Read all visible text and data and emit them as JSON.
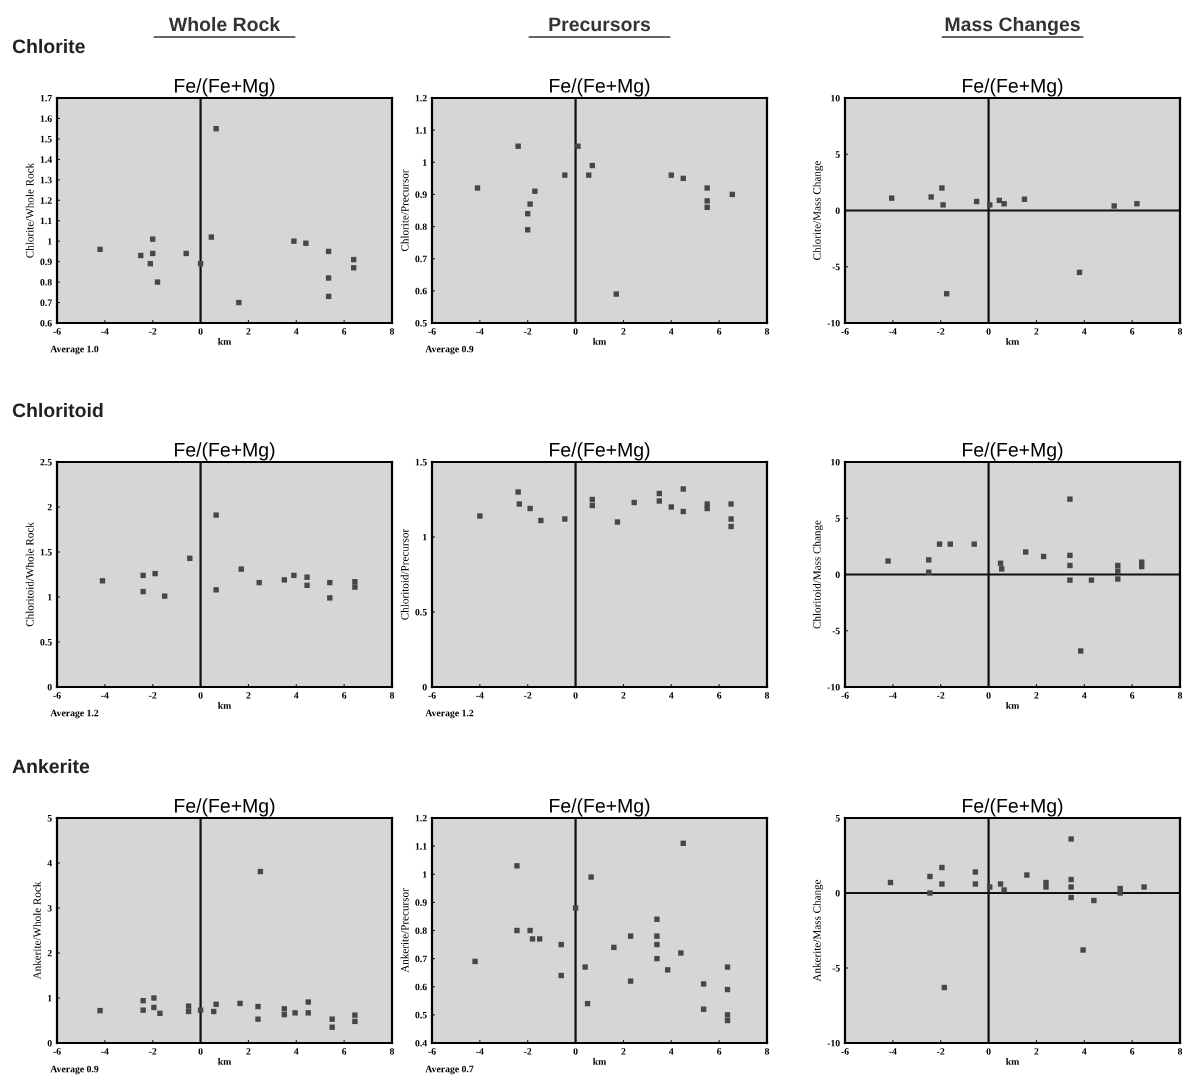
{
  "chart_data": [
    {
      "type": "scatter",
      "subtitle": "Whole Rock",
      "title": "Fe/(Fe+Mg)",
      "xlabel": "km",
      "ylabel": "Chlorite/Whole Rock",
      "annotations": [
        "Chlorite",
        "Average 1.0"
      ],
      "marker": "square",
      "color": "#474747",
      "xlim": [
        -6,
        8
      ],
      "xticks": [
        -6,
        -4,
        -2,
        0,
        2,
        4,
        6,
        8
      ],
      "ylim": [
        0.6,
        1.7
      ],
      "yticks": [
        0.6,
        0.7,
        0.8,
        0.9,
        1,
        1.1,
        1.2,
        1.3,
        1.4,
        1.5,
        1.6,
        1.7
      ],
      "ref_lines": [
        {
          "axis": "x",
          "value": 0
        }
      ],
      "x": [
        -4.2,
        -2.5,
        -2.0,
        -2.0,
        -2.1,
        -1.8,
        -0.6,
        0.0,
        0.45,
        0.65,
        1.6,
        3.9,
        4.4,
        5.35,
        5.35,
        5.35,
        6.4,
        6.4
      ],
      "values": [
        0.96,
        0.93,
        1.01,
        0.94,
        0.89,
        0.8,
        0.94,
        0.89,
        1.02,
        1.55,
        0.7,
        1.0,
        0.99,
        0.95,
        0.82,
        0.73,
        0.91,
        0.87
      ]
    },
    {
      "type": "scatter",
      "subtitle": "Precursors",
      "title": "Fe/(Fe+Mg)",
      "xlabel": "km",
      "ylabel": "Chlorite/Precursor",
      "annotations": [
        "Average 0.9"
      ],
      "marker": "square",
      "color": "#474747",
      "xlim": [
        -6,
        8
      ],
      "xticks": [
        -6,
        -4,
        -2,
        0,
        2,
        4,
        6,
        8
      ],
      "ylim": [
        0.5,
        1.2
      ],
      "yticks": [
        0.5,
        0.6,
        0.7,
        0.8,
        0.9,
        1,
        1.1,
        1.2
      ],
      "ref_lines": [
        {
          "axis": "x",
          "value": 0
        }
      ],
      "x": [
        -4.1,
        -2.4,
        -1.7,
        -1.9,
        -2.0,
        -2.0,
        -0.45,
        0.1,
        0.55,
        0.7,
        1.7,
        4.0,
        4.5,
        5.5,
        5.5,
        5.5,
        6.55
      ],
      "values": [
        0.92,
        1.05,
        0.91,
        0.87,
        0.84,
        0.79,
        0.96,
        1.05,
        0.96,
        0.99,
        0.59,
        0.96,
        0.95,
        0.92,
        0.88,
        0.86,
        0.9
      ]
    },
    {
      "type": "scatter",
      "subtitle": "Mass Changes",
      "title": "Fe/(Fe+Mg)",
      "xlabel": "km",
      "ylabel": "Chlorite/Mass Change",
      "marker": "square",
      "color": "#474747",
      "xlim": [
        -6,
        8
      ],
      "xticks": [
        -6,
        -4,
        -2,
        0,
        2,
        4,
        6,
        8
      ],
      "ylim": [
        -10,
        10
      ],
      "yticks": [
        -10,
        -5,
        0,
        5,
        10
      ],
      "ref_lines": [
        {
          "axis": "x",
          "value": 0
        },
        {
          "axis": "y",
          "value": 0
        }
      ],
      "x": [
        -4.05,
        -2.4,
        -1.95,
        -1.9,
        -0.5,
        0.05,
        0.45,
        0.65,
        1.5,
        5.25,
        6.2,
        3.8,
        -1.75
      ],
      "values": [
        1.1,
        1.2,
        2.0,
        0.5,
        0.8,
        0.5,
        0.9,
        0.6,
        1.0,
        0.4,
        0.6,
        -5.5,
        -7.4
      ]
    },
    {
      "type": "scatter",
      "title": "Fe/(Fe+Mg)",
      "xlabel": "km",
      "ylabel": "Chloritoid/Whole Rock",
      "annotations": [
        "Chloritoid",
        "Average 1.2"
      ],
      "marker": "square",
      "color": "#474747",
      "xlim": [
        -6,
        8
      ],
      "xticks": [
        -6,
        -4,
        -2,
        0,
        2,
        4,
        6,
        8
      ],
      "ylim": [
        0,
        2.5
      ],
      "yticks": [
        0,
        0.5,
        1,
        1.5,
        2,
        2.5
      ],
      "ref_lines": [
        {
          "axis": "x",
          "value": 0
        }
      ],
      "x": [
        -4.1,
        -2.4,
        -2.4,
        -1.9,
        -1.5,
        -0.45,
        0.65,
        0.65,
        1.7,
        2.45,
        3.5,
        3.9,
        4.45,
        4.45,
        5.4,
        5.4,
        6.45,
        6.45
      ],
      "values": [
        1.18,
        1.24,
        1.06,
        1.26,
        1.01,
        1.43,
        1.08,
        1.91,
        1.31,
        1.16,
        1.19,
        1.24,
        1.22,
        1.13,
        1.16,
        0.99,
        1.17,
        1.11
      ]
    },
    {
      "type": "scatter",
      "title": "Fe/(Fe+Mg)",
      "ylabel": "Chloritoid/Precursor",
      "annotations": [
        "Average 1.2"
      ],
      "marker": "square",
      "color": "#474747",
      "xlim": [
        -6,
        8
      ],
      "xticks": [
        -6,
        -4,
        -2,
        0,
        2,
        4,
        6,
        8
      ],
      "ylim": [
        0,
        1.5
      ],
      "yticks": [
        0,
        0.5,
        1,
        1.5
      ],
      "ref_lines": [
        {
          "axis": "x",
          "value": 0
        }
      ],
      "x": [
        -4.0,
        -2.4,
        -2.35,
        -1.9,
        -1.45,
        -0.45,
        0.7,
        0.7,
        1.75,
        2.45,
        3.5,
        3.5,
        4.0,
        4.5,
        4.5,
        5.5,
        5.5,
        6.5,
        6.5,
        6.5
      ],
      "values": [
        1.14,
        1.3,
        1.22,
        1.19,
        1.11,
        1.12,
        1.25,
        1.21,
        1.1,
        1.23,
        1.29,
        1.24,
        1.2,
        1.32,
        1.17,
        1.22,
        1.19,
        1.22,
        1.12,
        1.07
      ]
    },
    {
      "type": "scatter",
      "title": "Fe/(Fe+Mg)",
      "xlabel": "km",
      "ylabel": "Chloritoid/Mass Change",
      "marker": "square",
      "color": "#474747",
      "xlim": [
        -6,
        8
      ],
      "xticks": [
        -6,
        -4,
        -2,
        0,
        2,
        4,
        6,
        8
      ],
      "ylim": [
        -10,
        10
      ],
      "yticks": [
        -10,
        -5,
        0,
        5,
        10
      ],
      "ref_lines": [
        {
          "axis": "x",
          "value": 0
        },
        {
          "axis": "y",
          "value": 0
        }
      ],
      "x": [
        -4.2,
        -2.5,
        -2.5,
        -2.05,
        -1.6,
        -0.6,
        0.5,
        0.55,
        1.55,
        2.3,
        3.4,
        3.4,
        3.4,
        3.4,
        4.3,
        3.85,
        5.4,
        5.4,
        5.4,
        6.4,
        6.4
      ],
      "values": [
        1.2,
        1.3,
        0.2,
        2.7,
        2.7,
        2.7,
        1.0,
        0.5,
        2.0,
        1.6,
        6.7,
        1.7,
        0.8,
        -0.5,
        -0.5,
        -6.8,
        0.8,
        0.3,
        -0.4,
        1.1,
        0.7
      ]
    },
    {
      "type": "scatter",
      "title": "Fe/(Fe+Mg)",
      "xlabel": "km",
      "ylabel": "Ankerite/Whole Rock",
      "annotations": [
        "Ankerite",
        "Average 0.9"
      ],
      "marker": "square",
      "color": "#474747",
      "xlim": [
        -6,
        8
      ],
      "xticks": [
        -6,
        -4,
        -2,
        0,
        2,
        4,
        6,
        8
      ],
      "ylim": [
        0,
        5
      ],
      "yticks": [
        0,
        1,
        2,
        3,
        4,
        5
      ],
      "ref_lines": [
        {
          "axis": "x",
          "value": 0
        }
      ],
      "x": [
        -4.2,
        -2.4,
        -2.4,
        -1.95,
        -1.95,
        -1.7,
        -0.5,
        -0.5,
        0.0,
        0.55,
        0.65,
        1.65,
        2.4,
        2.4,
        2.5,
        3.5,
        3.5,
        3.95,
        4.5,
        4.5,
        5.5,
        5.5,
        6.45,
        6.45
      ],
      "values": [
        0.72,
        0.94,
        0.73,
        1.0,
        0.79,
        0.66,
        0.82,
        0.7,
        0.73,
        0.7,
        0.86,
        0.88,
        0.81,
        0.53,
        3.81,
        0.76,
        0.63,
        0.67,
        0.91,
        0.67,
        0.53,
        0.35,
        0.62,
        0.48
      ]
    },
    {
      "type": "scatter",
      "title": "Fe/(Fe+Mg)",
      "xlabel": "km",
      "ylabel": "Ankerite/Precursor",
      "annotations": [
        "Average 0.7"
      ],
      "marker": "square",
      "color": "#474747",
      "xlim": [
        -6,
        8
      ],
      "xticks": [
        -6,
        -4,
        -2,
        0,
        2,
        4,
        6,
        8
      ],
      "ylim": [
        0.4,
        1.2
      ],
      "yticks": [
        0.4,
        0.5,
        0.6,
        0.7,
        0.8,
        0.9,
        1,
        1.1,
        1.2
      ],
      "ref_lines": [
        {
          "axis": "x",
          "value": 0
        }
      ],
      "x": [
        -4.2,
        -2.45,
        -2.45,
        -1.9,
        -1.8,
        -1.5,
        -0.6,
        -0.6,
        0.0,
        0.4,
        0.5,
        0.65,
        1.6,
        2.3,
        2.3,
        3.4,
        3.4,
        3.4,
        3.4,
        3.85,
        4.4,
        4.5,
        5.35,
        5.35,
        6.35,
        6.35,
        6.35,
        6.35
      ],
      "values": [
        0.69,
        1.03,
        0.8,
        0.8,
        0.77,
        0.77,
        0.75,
        0.64,
        0.88,
        0.67,
        0.54,
        0.99,
        0.74,
        0.78,
        0.62,
        0.84,
        0.78,
        0.75,
        0.7,
        0.66,
        0.72,
        1.11,
        0.61,
        0.52,
        0.67,
        0.59,
        0.5,
        0.48
      ]
    },
    {
      "type": "scatter",
      "title": "Fe/(Fe+Mg)",
      "xlabel": "km",
      "ylabel": "Ankerite/Mass Change",
      "marker": "square",
      "color": "#474747",
      "xlim": [
        -6,
        8
      ],
      "xticks": [
        -6,
        -4,
        -2,
        0,
        2,
        4,
        6,
        8
      ],
      "ylim": [
        -10,
        5
      ],
      "yticks": [
        -10,
        -5,
        0,
        5
      ],
      "ref_lines": [
        {
          "axis": "x",
          "value": 0
        },
        {
          "axis": "y",
          "value": 0
        }
      ],
      "x": [
        -4.1,
        -2.45,
        -2.45,
        -1.95,
        -1.95,
        -0.55,
        -0.55,
        0.05,
        0.5,
        0.65,
        1.6,
        2.4,
        2.4,
        3.45,
        3.45,
        3.45,
        3.45,
        4.4,
        3.95,
        -1.85,
        5.5,
        5.5,
        6.5
      ],
      "values": [
        0.7,
        1.1,
        0.0,
        1.7,
        0.6,
        1.4,
        0.6,
        0.4,
        0.6,
        0.2,
        1.2,
        0.7,
        0.4,
        3.6,
        0.9,
        0.4,
        -0.3,
        -0.5,
        -3.8,
        -6.3,
        0.3,
        0.0,
        0.4
      ]
    }
  ]
}
